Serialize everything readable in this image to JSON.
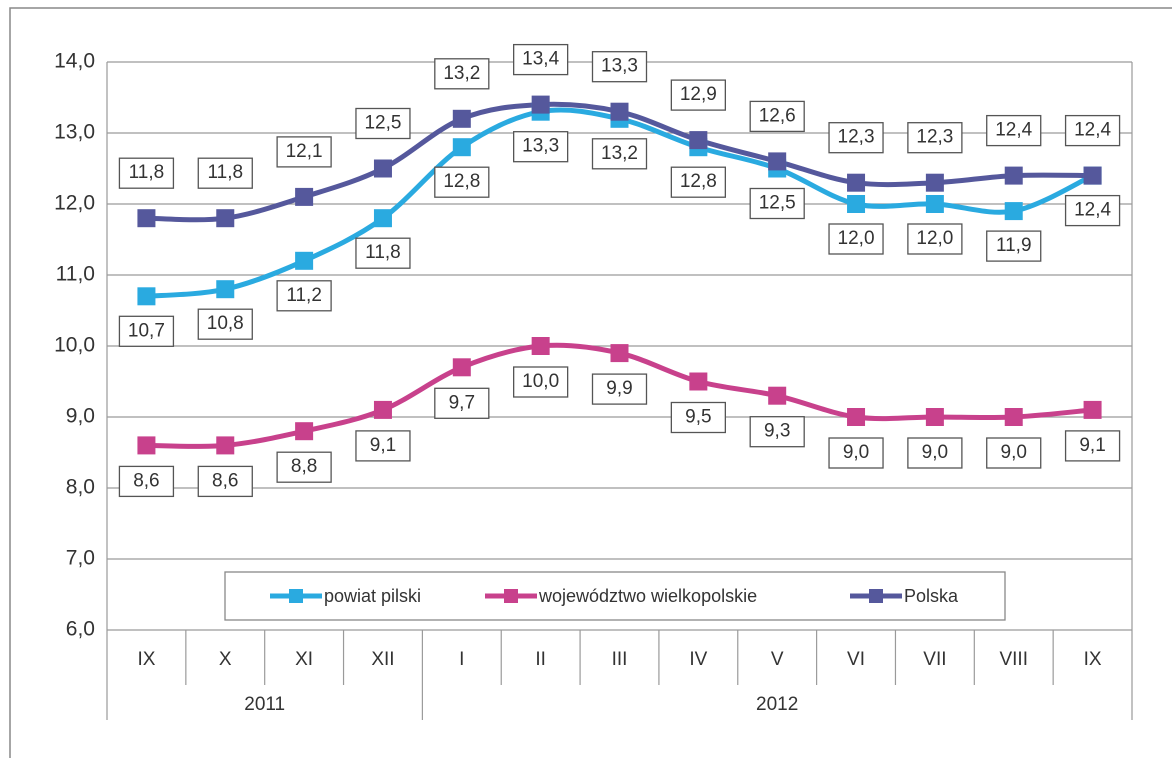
{
  "chart_data": {
    "type": "line",
    "categories": [
      "IX",
      "X",
      "XI",
      "XII",
      "I",
      "II",
      "III",
      "IV",
      "V",
      "VI",
      "VII",
      "VIII",
      "IX"
    ],
    "years": [
      "2011",
      "2011",
      "2011",
      "2011",
      "2012",
      "2012",
      "2012",
      "2012",
      "2012",
      "2012",
      "2012",
      "2012",
      "2012"
    ],
    "series": [
      {
        "name": "powiat pilski",
        "color": "#2aaae0",
        "values": [
          10.7,
          10.8,
          11.2,
          11.8,
          12.8,
          13.3,
          13.2,
          12.8,
          12.5,
          12.0,
          12.0,
          11.9,
          12.4
        ],
        "value_labels": [
          "10,7",
          "10,8",
          "11,2",
          "11,8",
          "12,8",
          "13,3",
          "13,2",
          "12,8",
          "12,5",
          "12,0",
          "12,0",
          "11,9",
          "12,4"
        ]
      },
      {
        "name": "województwo wielkopolskie",
        "color": "#c8418c",
        "values": [
          8.6,
          8.6,
          8.8,
          9.1,
          9.7,
          10.0,
          9.9,
          9.5,
          9.3,
          9.0,
          9.0,
          9.0,
          9.1
        ],
        "value_labels": [
          "8,6",
          "8,6",
          "8,8",
          "9,1",
          "9,7",
          "10,0",
          "9,9",
          "9,5",
          "9,3",
          "9,0",
          "9,0",
          "9,0",
          "9,1"
        ]
      },
      {
        "name": "Polska",
        "color": "#55589c",
        "values": [
          11.8,
          11.8,
          12.1,
          12.5,
          13.2,
          13.4,
          13.3,
          12.9,
          12.6,
          12.3,
          12.3,
          12.4,
          12.4
        ],
        "value_labels": [
          "11,8",
          "11,8",
          "12,1",
          "12,5",
          "13,2",
          "13,4",
          "13,3",
          "12,9",
          "12,6",
          "12,3",
          "12,3",
          "12,4",
          "12,4"
        ]
      }
    ],
    "ylim": [
      6,
      14
    ],
    "yticks": [
      {
        "value": 6,
        "label": "6,0"
      },
      {
        "value": 7,
        "label": "7,0"
      },
      {
        "value": 8,
        "label": "8,0"
      },
      {
        "value": 9,
        "label": "9,0"
      },
      {
        "value": 10,
        "label": "10,0"
      },
      {
        "value": 11,
        "label": "11,0"
      },
      {
        "value": 12,
        "label": "12,0"
      },
      {
        "value": 13,
        "label": "13,0"
      },
      {
        "value": 14,
        "label": "14,0"
      }
    ],
    "grid": true
  }
}
